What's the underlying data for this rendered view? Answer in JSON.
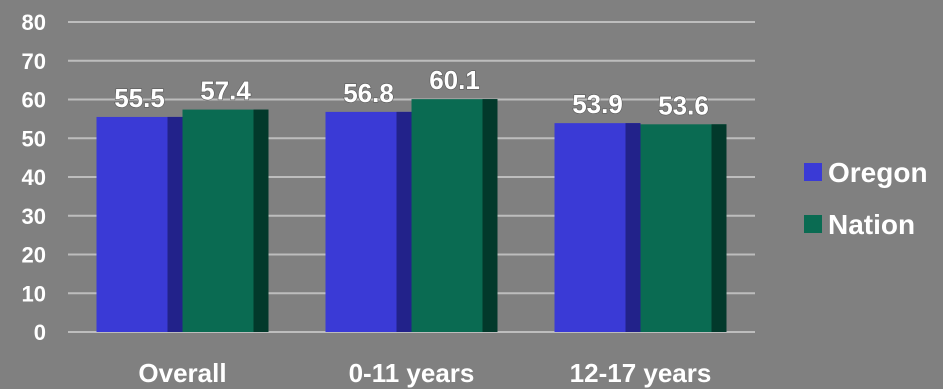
{
  "chart_data": {
    "type": "bar",
    "categories": [
      "Overall",
      "0-11 years",
      "12-17 years"
    ],
    "series": [
      {
        "name": "Oregon",
        "values": [
          55.5,
          56.8,
          53.9
        ],
        "labels": [
          "55.5",
          "56.8",
          "53.9"
        ],
        "color": "#3a3ad6",
        "dark": "#22228a"
      },
      {
        "name": "Nation",
        "values": [
          57.4,
          60.1,
          53.6
        ],
        "labels": [
          "57.4",
          "60.1",
          "53.6"
        ],
        "color": "#0a6b52",
        "dark": "#02392b"
      }
    ],
    "ylim": [
      0,
      80
    ],
    "yticks": [
      0,
      10,
      20,
      30,
      40,
      50,
      60,
      70,
      80
    ],
    "grid": true,
    "legend_position": "right",
    "background": "#808080"
  }
}
